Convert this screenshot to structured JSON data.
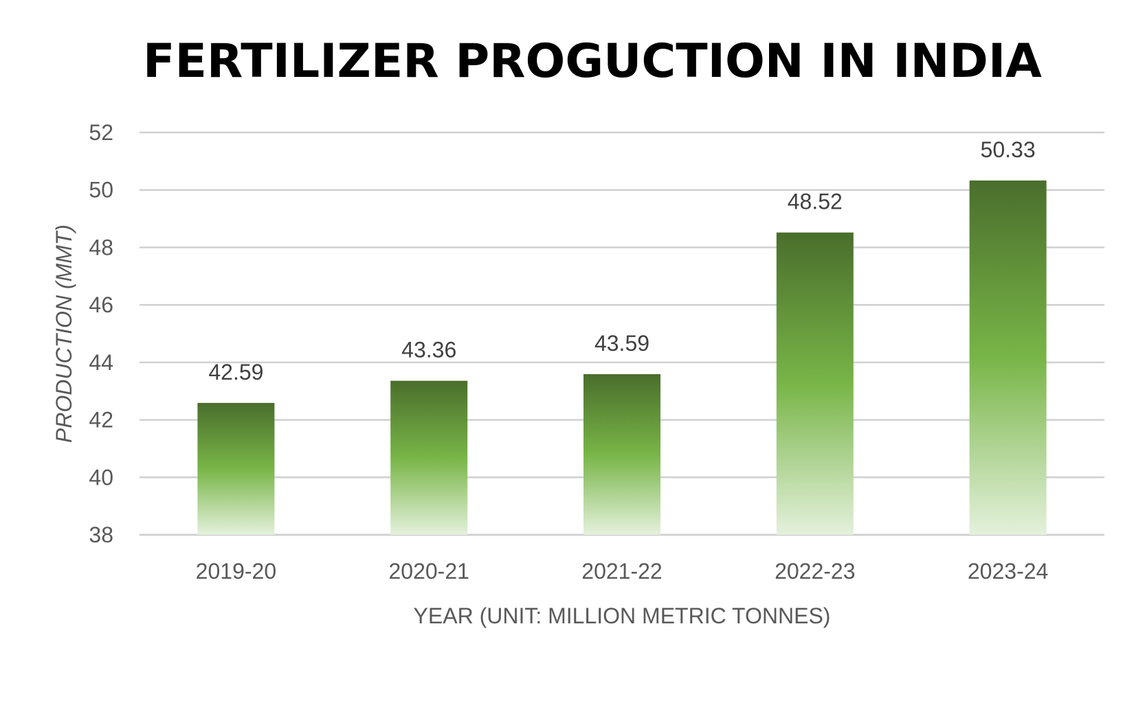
{
  "chart_data": {
    "type": "bar",
    "title": "FERTILIZER PROGUCTION IN INDIA",
    "xlabel": "YEAR (UNIT: MILLION METRIC TONNES)",
    "ylabel": "PRODUCTION (MMT)",
    "categories": [
      "2019-20",
      "2020-21",
      "2021-22",
      "2022-23",
      "2023-24"
    ],
    "values": [
      42.59,
      43.36,
      43.59,
      48.52,
      50.33
    ],
    "data_labels": [
      "42.59",
      "43.36",
      "43.59",
      "48.52",
      "50.33"
    ],
    "ylim": [
      38,
      52
    ],
    "yticks": [
      38,
      40,
      42,
      44,
      46,
      48,
      50,
      52
    ],
    "grid": true,
    "legend": "none",
    "colors": {
      "bar_top": "#4a6e2c",
      "bar_mid": "#78b547",
      "bar_bottom": "#e4f1dc",
      "grid": "#d0d0d0"
    }
  }
}
